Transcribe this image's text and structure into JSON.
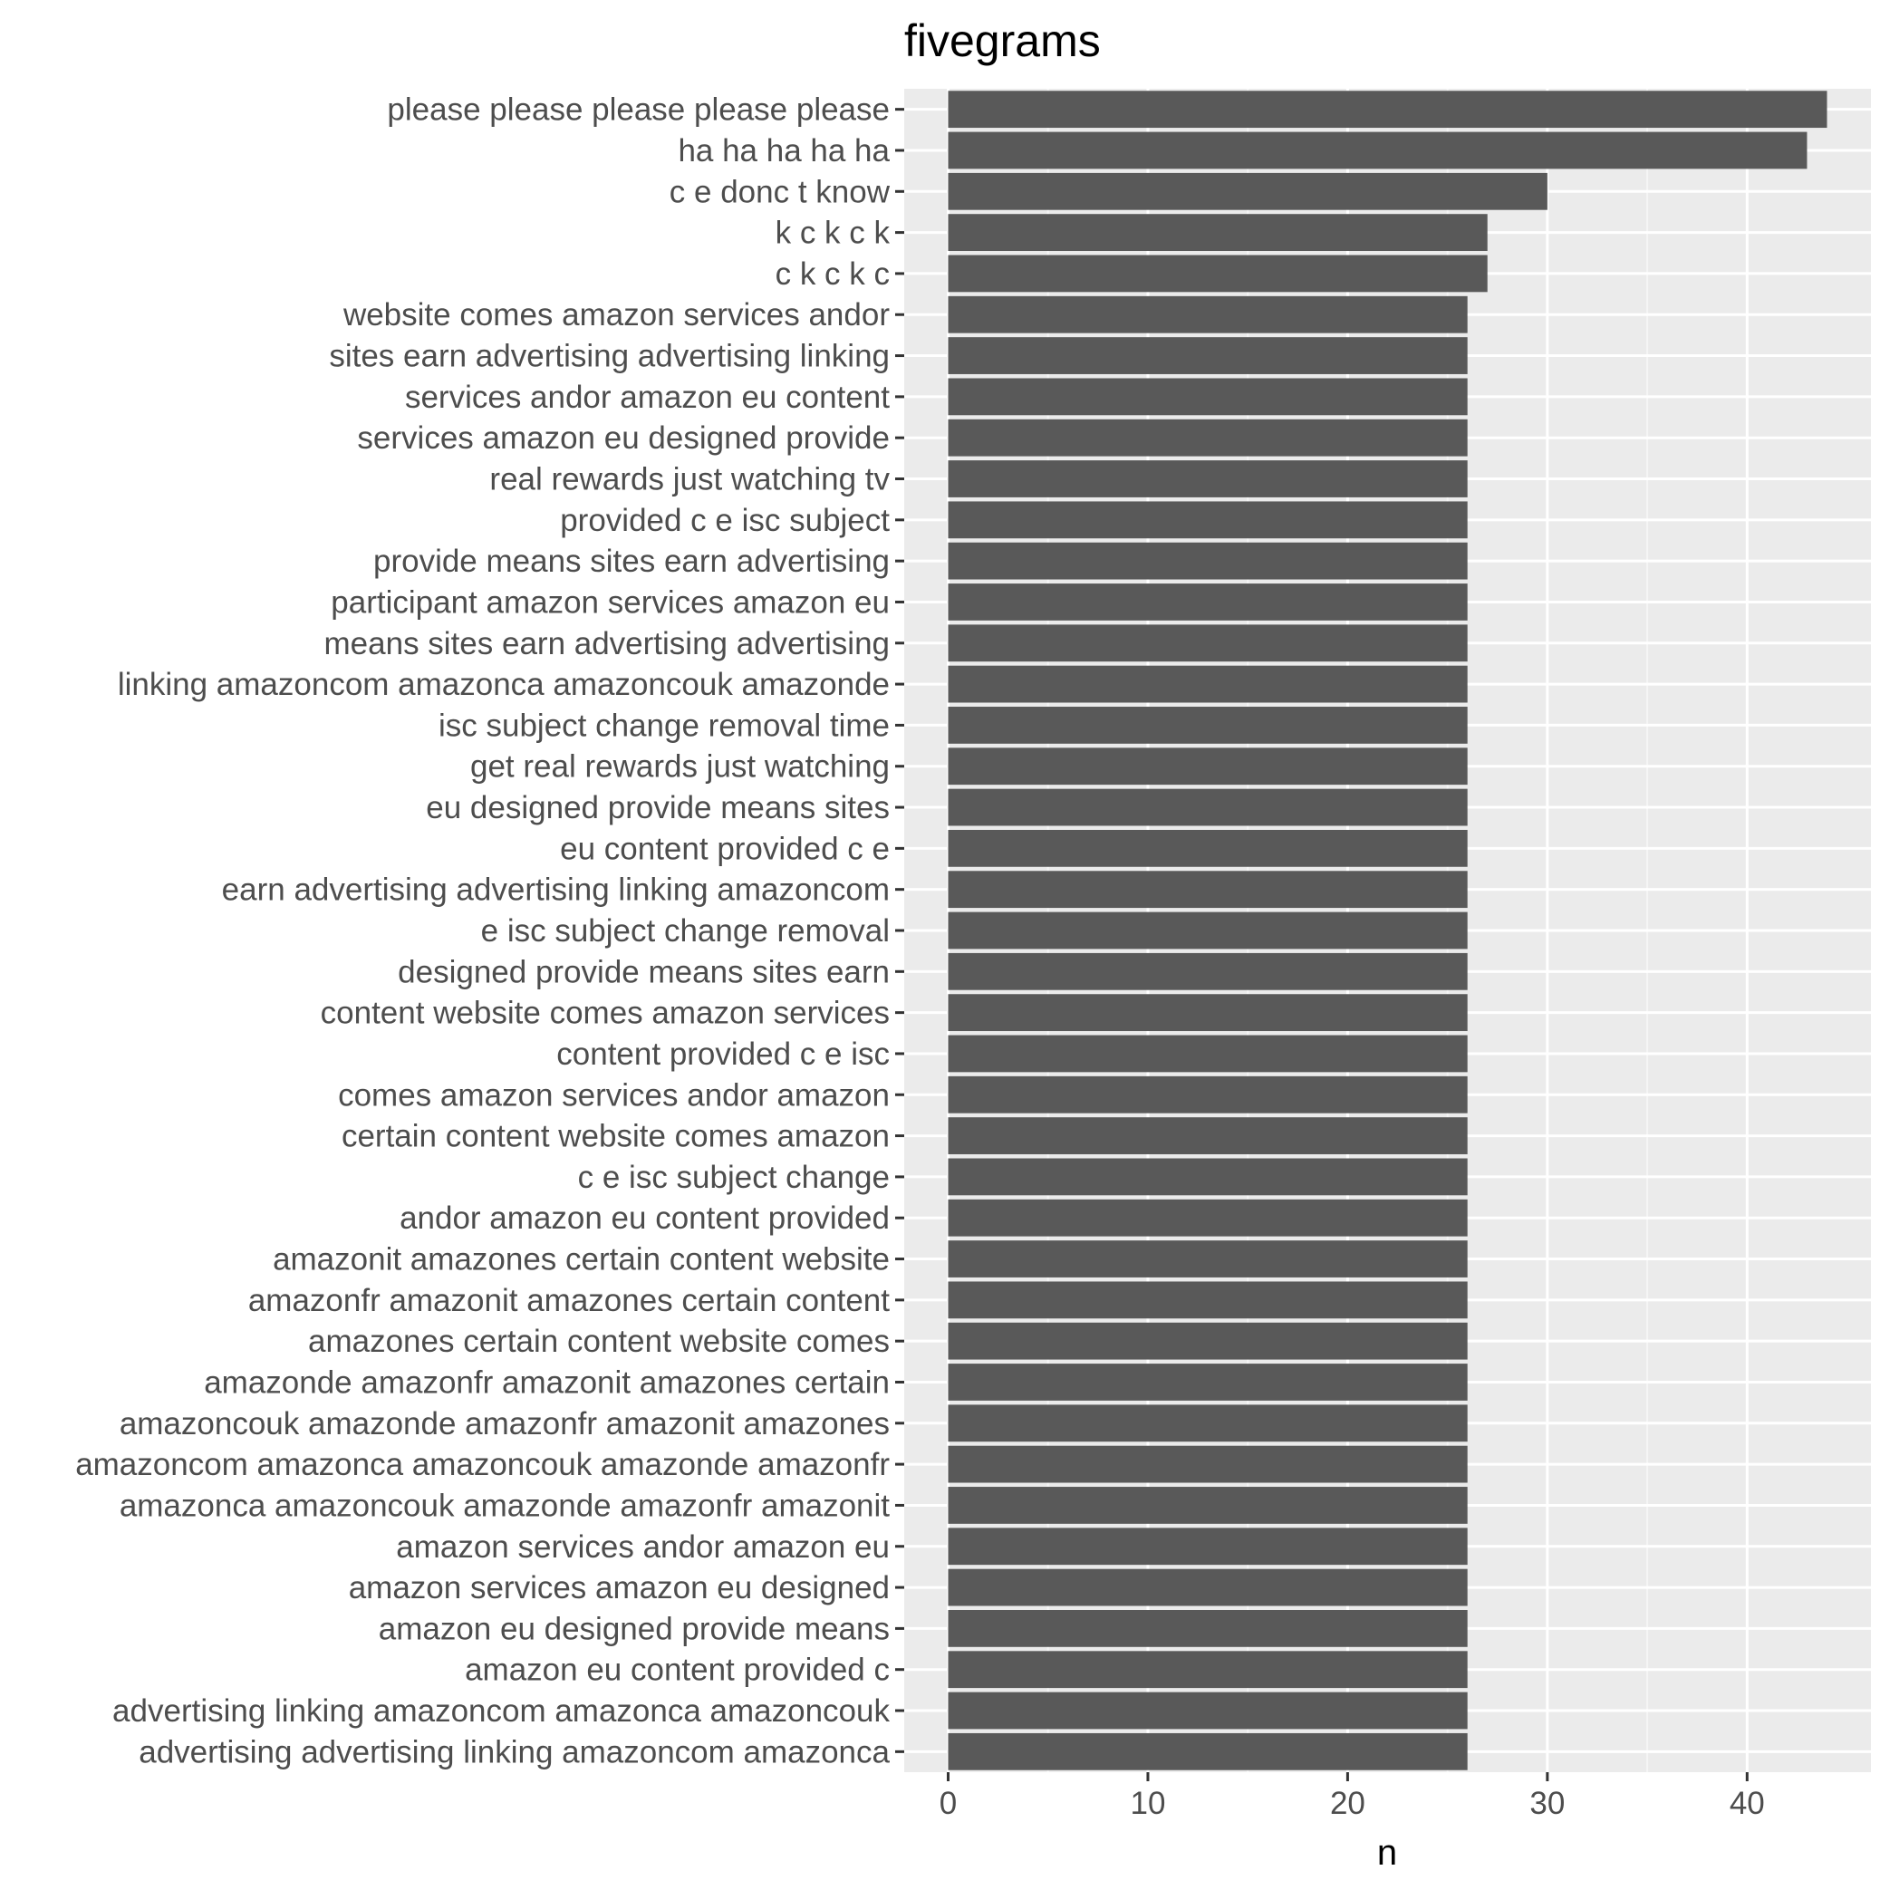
{
  "chart_data": {
    "type": "bar",
    "orientation": "horizontal",
    "title": "fivegrams",
    "xlabel": "n",
    "ylabel": "",
    "xlim": [
      -2.2,
      46.2
    ],
    "xticks": [
      0,
      10,
      20,
      30,
      40
    ],
    "xtick_labels": [
      "0",
      "10",
      "20",
      "30",
      "40"
    ],
    "grid": true,
    "legend": "none",
    "colors": {
      "bar": "#595959",
      "panel_background": "#ebebeb",
      "grid_major": "#ffffff",
      "grid_minor": "#f5f5f5",
      "tick_mark": "#333333",
      "axis_text": "#4d4d4d",
      "title_text": "#000000"
    },
    "categories": [
      "please please please please please",
      "ha ha ha ha ha",
      "c e donc t know",
      "k c k c k",
      "c k c k c",
      "website comes amazon services andor",
      "sites earn advertising advertising linking",
      "services andor amazon eu content",
      "services amazon eu designed provide",
      "real rewards just watching tv",
      "provided c e isc subject",
      "provide means sites earn advertising",
      "participant amazon services amazon eu",
      "means sites earn advertising advertising",
      "linking amazoncom amazonca amazoncouk amazonde",
      "isc subject change removal time",
      "get real rewards just watching",
      "eu designed provide means sites",
      "eu content provided c e",
      "earn advertising advertising linking amazoncom",
      "e isc subject change removal",
      "designed provide means sites earn",
      "content website comes amazon services",
      "content provided c e isc",
      "comes amazon services andor amazon",
      "certain content website comes amazon",
      "c e isc subject change",
      "andor amazon eu content provided",
      "amazonit amazones certain content website",
      "amazonfr amazonit amazones certain content",
      "amazones certain content website comes",
      "amazonde amazonfr amazonit amazones certain",
      "amazoncouk amazonde amazonfr amazonit amazones",
      "amazoncom amazonca amazoncouk amazonde amazonfr",
      "amazonca amazoncouk amazonde amazonfr amazonit",
      "amazon services andor amazon eu",
      "amazon services amazon eu designed",
      "amazon eu designed provide means",
      "amazon eu content provided c",
      "advertising linking amazoncom amazonca amazoncouk",
      "advertising advertising linking amazoncom amazonca"
    ],
    "values": [
      44,
      43,
      30,
      27,
      27,
      26,
      26,
      26,
      26,
      26,
      26,
      26,
      26,
      26,
      26,
      26,
      26,
      26,
      26,
      26,
      26,
      26,
      26,
      26,
      26,
      26,
      26,
      26,
      26,
      26,
      26,
      26,
      26,
      26,
      26,
      26,
      26,
      26,
      26,
      26,
      26
    ]
  }
}
